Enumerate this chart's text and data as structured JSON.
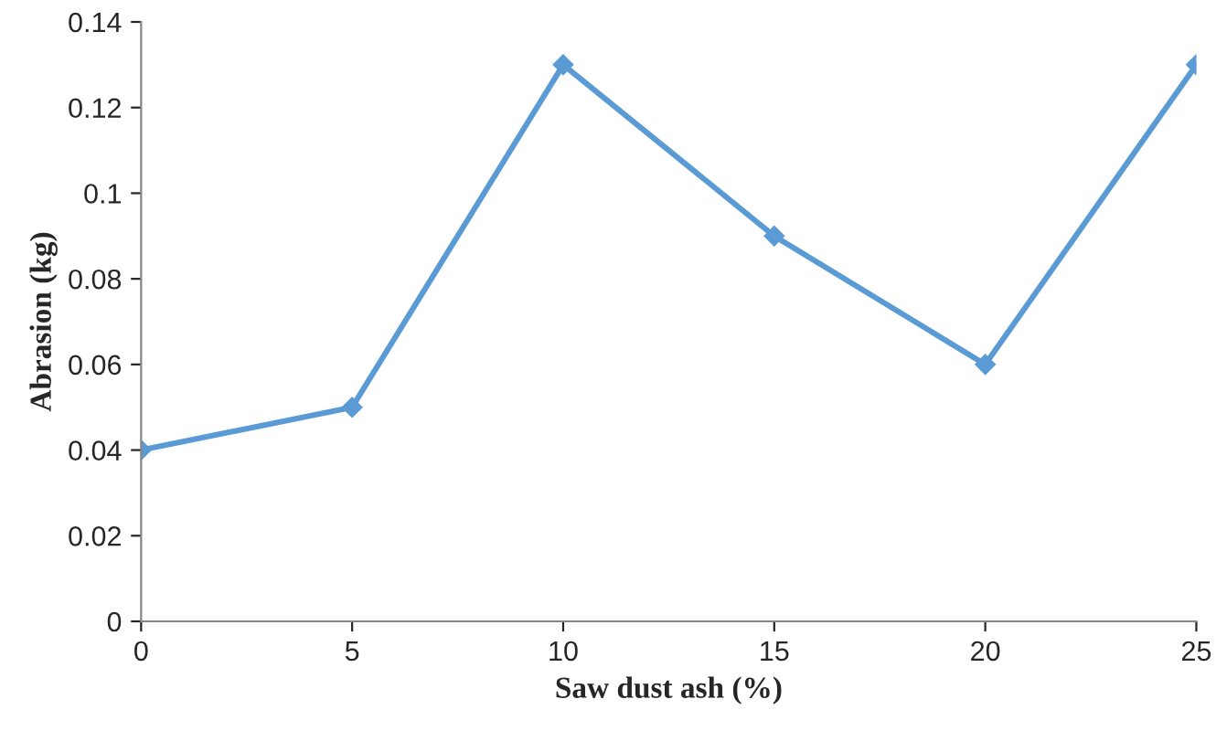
{
  "chart_data": {
    "type": "line",
    "xlabel": "Saw dust ash (%)",
    "ylabel": "Abrasion (kg)",
    "x": [
      0,
      5,
      10,
      15,
      20,
      25
    ],
    "series": [
      {
        "color": "#5b9bd5",
        "values": [
          0.04,
          0.05,
          0.13,
          0.09,
          0.06,
          0.13
        ]
      }
    ],
    "xlim": [
      0,
      25
    ],
    "xticks": [
      0,
      5,
      10,
      15,
      20,
      25
    ],
    "ylim": [
      0,
      0.14
    ],
    "yticks": [
      0,
      0.02,
      0.04,
      0.06,
      0.08,
      0.1,
      0.12,
      0.14
    ],
    "marker": "diamond",
    "line_style": "solid",
    "grid": false,
    "legend": false
  }
}
